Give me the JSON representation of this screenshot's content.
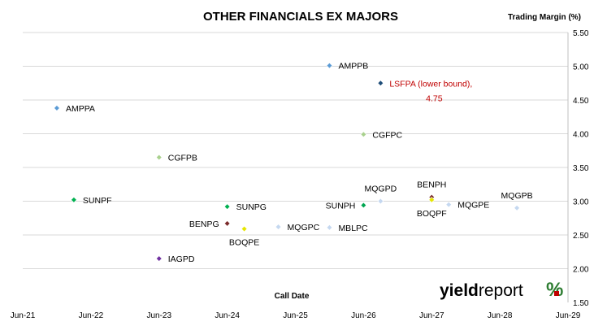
{
  "chart_data": {
    "type": "scatter",
    "title": "OTHER FINANCIALS EX MAJORS",
    "xlabel": "Call Date",
    "ylabel": "Trading Margin (%)",
    "x_ticks": [
      "Jun-21",
      "Jun-22",
      "Jun-23",
      "Jun-24",
      "Jun-25",
      "Jun-26",
      "Jun-27",
      "Jun-28",
      "Jun-29"
    ],
    "xlim": [
      "2021-06",
      "2029-06"
    ],
    "ylim": [
      1.5,
      5.5
    ],
    "y_ticks": [
      "1.50",
      "2.00",
      "2.50",
      "3.00",
      "3.50",
      "4.00",
      "4.50",
      "5.00",
      "5.50"
    ],
    "y_axis_side": "right",
    "grid": "horizontal",
    "legend": "none",
    "points": [
      {
        "label": "AMPPA",
        "x": "2021-12",
        "y": 4.38,
        "color": "#5b9bd5",
        "label_pos": "right"
      },
      {
        "label": "AMPPB",
        "x": "2025-12",
        "y": 5.01,
        "color": "#5b9bd5",
        "label_pos": "right"
      },
      {
        "label": "LSFPA (lower bound),",
        "label2": "4.75",
        "x": "2026-09",
        "y": 4.75,
        "color": "#1f4e79",
        "label_pos": "right",
        "special": true
      },
      {
        "label": "CGFPC",
        "x": "2026-06",
        "y": 3.99,
        "color": "#a9d18e",
        "label_pos": "right"
      },
      {
        "label": "CGFPB",
        "x": "2023-06",
        "y": 3.65,
        "color": "#a9d18e",
        "label_pos": "right"
      },
      {
        "label": "SUNPF",
        "x": "2022-03",
        "y": 3.02,
        "color": "#00b050",
        "label_pos": "right"
      },
      {
        "label": "SUNPG",
        "x": "2024-06",
        "y": 2.92,
        "color": "#00b050",
        "label_pos": "right"
      },
      {
        "label": "SUNPH",
        "x": "2026-06",
        "y": 2.94,
        "color": "#00a651",
        "label_pos": "left"
      },
      {
        "label": "MQGPD",
        "x": "2026-09",
        "y": 3.0,
        "color": "#c5d8f0",
        "label_pos": "above"
      },
      {
        "label": "BENPH",
        "x": "2027-06",
        "y": 3.06,
        "color": "#7b2b2b",
        "label_pos": "above"
      },
      {
        "label": "BOQPF",
        "x": "2027-06",
        "y": 3.02,
        "color": "#e6e600",
        "label_pos": "below"
      },
      {
        "label": "MQGPE",
        "x": "2027-09",
        "y": 2.95,
        "color": "#c5d8f0",
        "label_pos": "right"
      },
      {
        "label": "MQGPB",
        "x": "2028-09",
        "y": 2.9,
        "color": "#c5d8f0",
        "label_pos": "above"
      },
      {
        "label": "BENPG",
        "x": "2024-06",
        "y": 2.67,
        "color": "#7b2b2b",
        "label_pos": "left"
      },
      {
        "label": "BOQPE",
        "x": "2024-09",
        "y": 2.59,
        "color": "#e6e600",
        "label_pos": "below"
      },
      {
        "label": "MQGPC",
        "x": "2025-03",
        "y": 2.62,
        "color": "#c5d8f0",
        "label_pos": "right"
      },
      {
        "label": "MBLPC",
        "x": "2025-12",
        "y": 2.61,
        "color": "#c5d8f0",
        "label_pos": "right"
      },
      {
        "label": "IAGPD",
        "x": "2023-06",
        "y": 2.15,
        "color": "#7030a0",
        "label_pos": "right"
      }
    ]
  },
  "logo": {
    "text_bold": "yield",
    "text_light": "report",
    "mark": "%"
  }
}
